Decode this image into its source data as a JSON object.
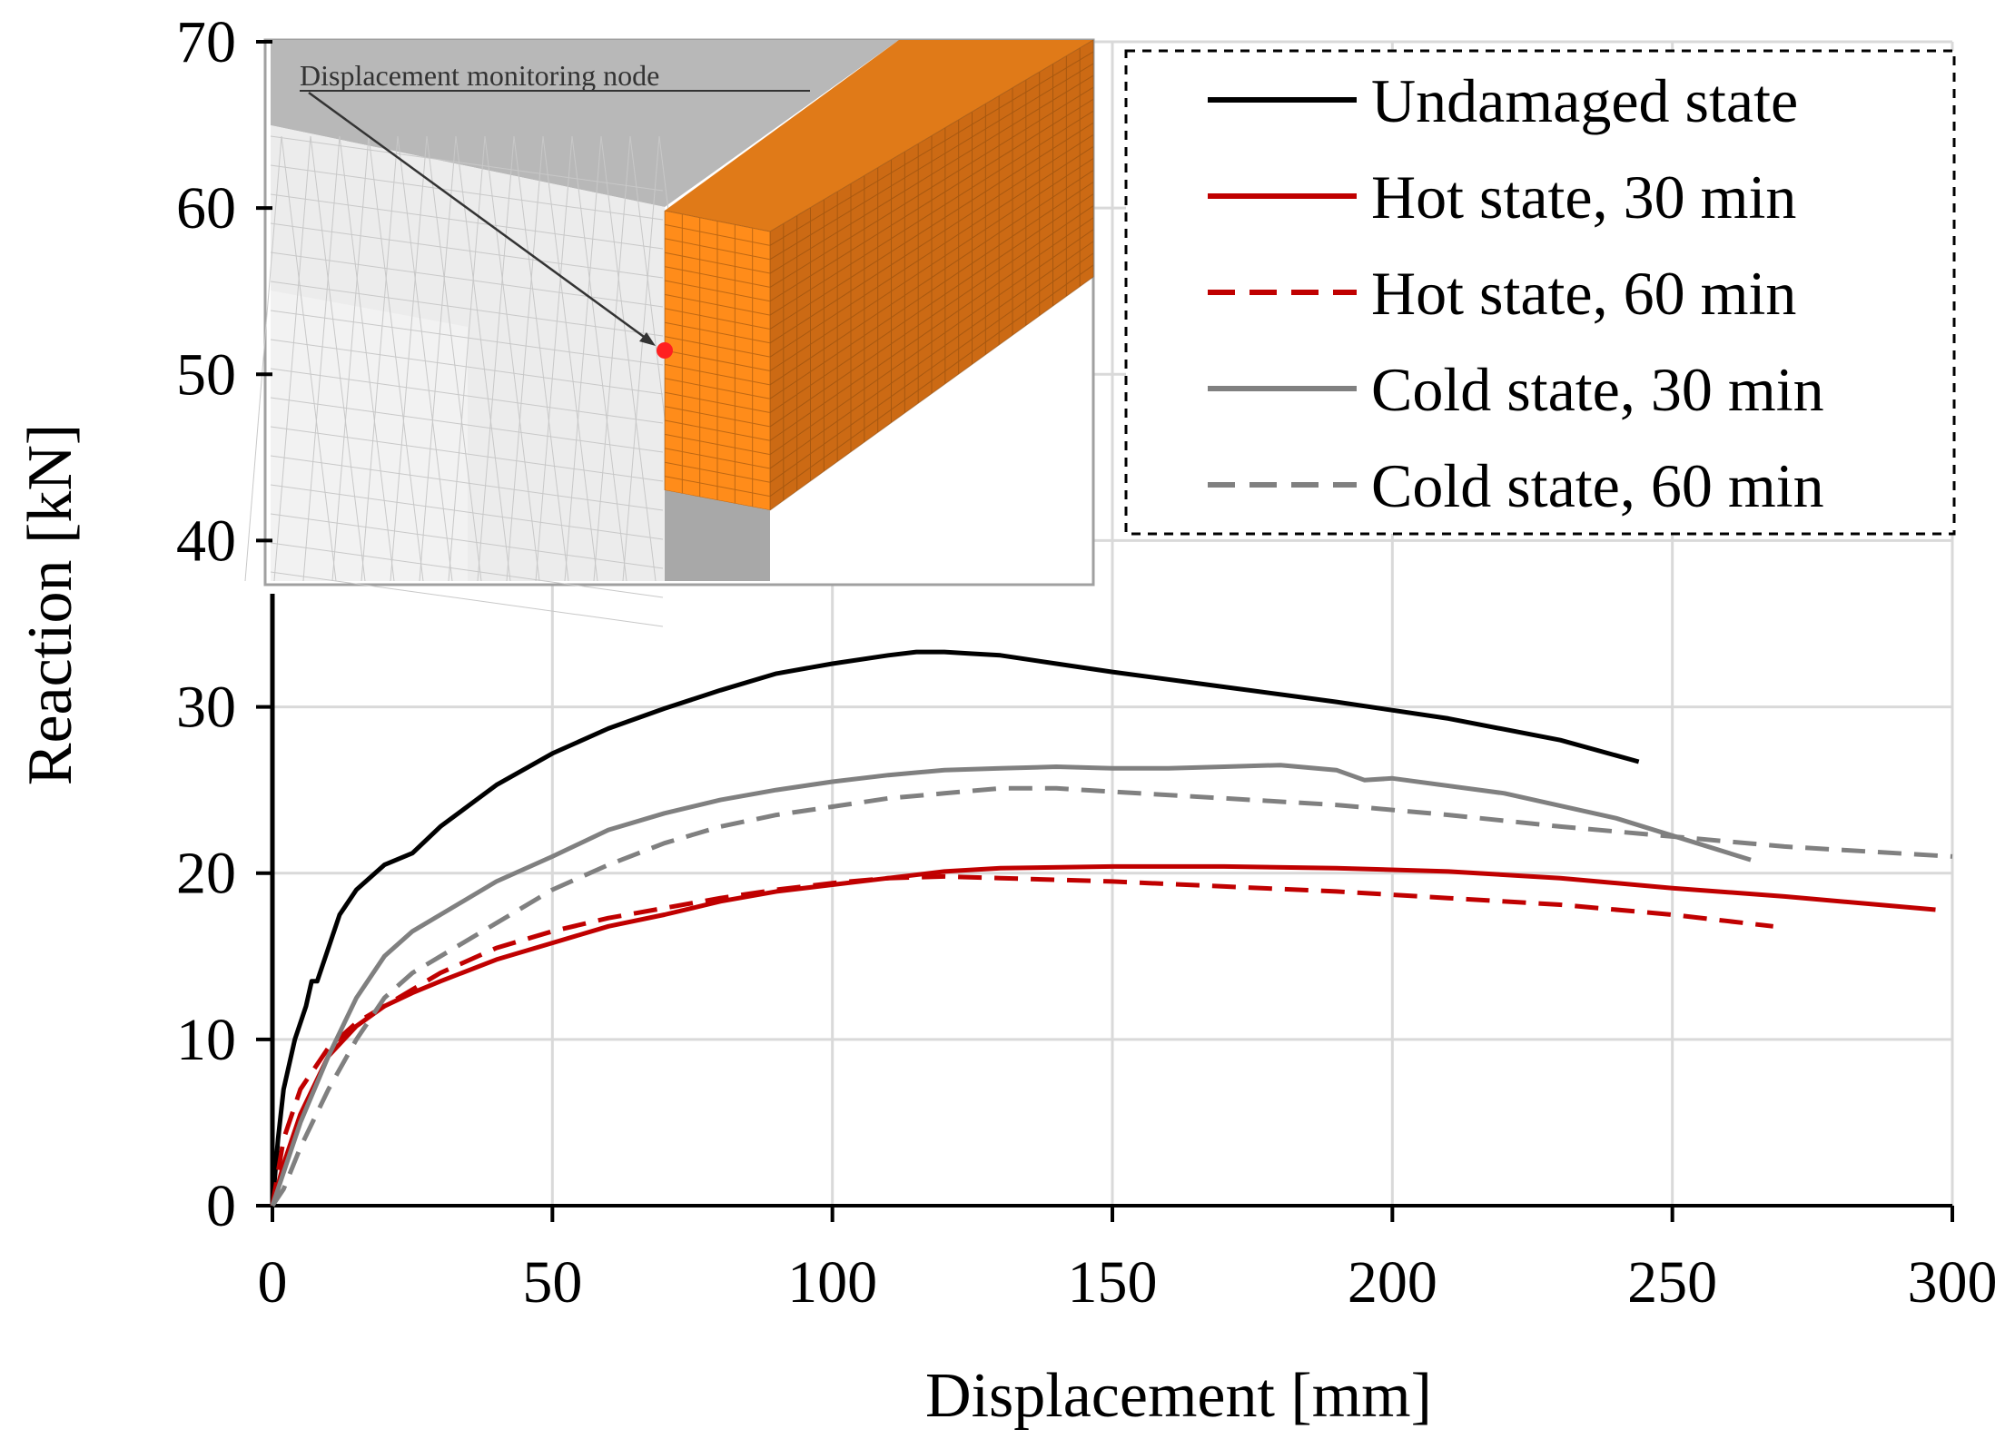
{
  "chart_data": {
    "type": "line",
    "xlabel": "Displacement  [mm]",
    "ylabel": "Reaction  [kN]",
    "xlim": [
      0,
      300
    ],
    "ylim": [
      0,
      70
    ],
    "xticks": [
      0,
      50,
      100,
      150,
      200,
      250,
      300
    ],
    "yticks": [
      0,
      10,
      20,
      30,
      40,
      50,
      60,
      70
    ],
    "grid": true,
    "legend_position": "top-right",
    "series": [
      {
        "name": "Undamaged state",
        "color": "#000000",
        "dash": "solid",
        "x": [
          0,
          1,
          2,
          4,
          6,
          7,
          8,
          10,
          12,
          15,
          20,
          25,
          30,
          40,
          50,
          60,
          70,
          80,
          90,
          100,
          110,
          115,
          120,
          125,
          130,
          140,
          150,
          170,
          190,
          210,
          230,
          244
        ],
        "y": [
          0,
          4,
          7,
          10,
          12,
          13.5,
          13.5,
          15.5,
          17.5,
          19,
          20.5,
          21.2,
          22.8,
          25.3,
          27.2,
          28.7,
          29.9,
          31,
          32,
          32.6,
          33.1,
          33.3,
          33.3,
          33.2,
          33.1,
          32.6,
          32.1,
          31.2,
          30.3,
          29.3,
          28,
          26.7
        ]
      },
      {
        "name": "Hot state, 30 min",
        "color": "#c00000",
        "dash": "solid",
        "x": [
          0,
          2,
          5,
          10,
          15,
          20,
          25,
          30,
          40,
          50,
          60,
          70,
          80,
          90,
          100,
          110,
          120,
          130,
          150,
          170,
          190,
          210,
          230,
          250,
          270,
          297
        ],
        "y": [
          0,
          2.5,
          5.5,
          9,
          10.8,
          12,
          12.8,
          13.5,
          14.8,
          15.8,
          16.8,
          17.5,
          18.3,
          18.9,
          19.3,
          19.7,
          20.1,
          20.3,
          20.4,
          20.4,
          20.3,
          20.1,
          19.7,
          19.1,
          18.6,
          17.8
        ]
      },
      {
        "name": "Hot state, 60 min",
        "color": "#c00000",
        "dash": "dashed",
        "x": [
          0,
          2,
          5,
          10,
          15,
          20,
          25,
          30,
          40,
          50,
          60,
          70,
          80,
          90,
          100,
          110,
          120,
          130,
          150,
          170,
          190,
          210,
          230,
          250,
          268
        ],
        "y": [
          0,
          4,
          7,
          9.5,
          11,
          12,
          13,
          14,
          15.5,
          16.5,
          17.3,
          17.9,
          18.5,
          19,
          19.4,
          19.7,
          19.8,
          19.7,
          19.5,
          19.2,
          18.9,
          18.5,
          18.1,
          17.5,
          16.8
        ]
      },
      {
        "name": "Cold state, 30 min",
        "color": "#808080",
        "dash": "solid",
        "x": [
          0,
          2,
          5,
          10,
          15,
          20,
          25,
          30,
          40,
          50,
          60,
          70,
          80,
          90,
          100,
          110,
          120,
          130,
          140,
          150,
          160,
          170,
          180,
          190,
          195,
          200,
          220,
          240,
          264
        ],
        "y": [
          0,
          2,
          5,
          9,
          12.5,
          15,
          16.5,
          17.5,
          19.5,
          21,
          22.6,
          23.6,
          24.4,
          25,
          25.5,
          25.9,
          26.2,
          26.3,
          26.4,
          26.3,
          26.3,
          26.4,
          26.5,
          26.2,
          25.6,
          25.7,
          24.8,
          23.3,
          20.8
        ]
      },
      {
        "name": "Cold state, 60 min",
        "color": "#808080",
        "dash": "dashed",
        "x": [
          0,
          2,
          5,
          10,
          15,
          20,
          25,
          30,
          40,
          50,
          60,
          70,
          80,
          90,
          100,
          110,
          120,
          130,
          140,
          150,
          170,
          190,
          210,
          230,
          250,
          270,
          300
        ],
        "y": [
          0,
          1,
          3.5,
          7,
          10,
          12.5,
          14,
          15,
          17,
          19,
          20.5,
          21.8,
          22.8,
          23.5,
          24,
          24.5,
          24.8,
          25.1,
          25.1,
          24.9,
          24.5,
          24.1,
          23.5,
          22.8,
          22.2,
          21.6,
          21
        ]
      }
    ]
  },
  "inset": {
    "annotation": "Displacement monitoring node"
  }
}
